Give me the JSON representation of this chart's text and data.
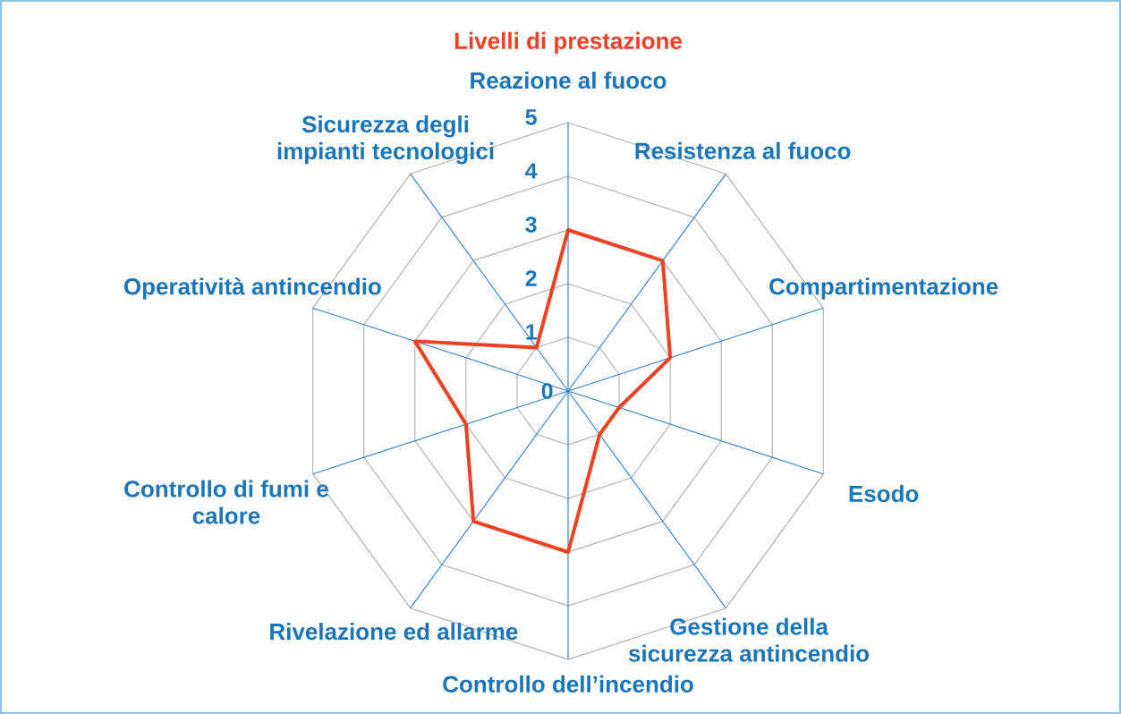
{
  "chart_data": {
    "type": "radar",
    "title": "Livelli di prestazione",
    "categories": [
      "Reazione al fuoco",
      "Resistenza al fuoco",
      "Compartimentazione",
      "Esodo",
      "Gestione della sicurezza antincendio",
      "Controllo dell’incendio",
      "Rivelazione ed allarme",
      "Controllo di fumi e calore",
      "Operatività antincendio",
      "Sicurezza degli impianti tecnologici"
    ],
    "series": [
      {
        "color": "#ee4023",
        "values": [
          3,
          3,
          2,
          1,
          1,
          3,
          3,
          2,
          3,
          1
        ]
      }
    ],
    "ylim": [
      0,
      5
    ],
    "yticks": [
      0,
      1,
      2,
      3,
      4,
      5
    ],
    "grid": true
  }
}
